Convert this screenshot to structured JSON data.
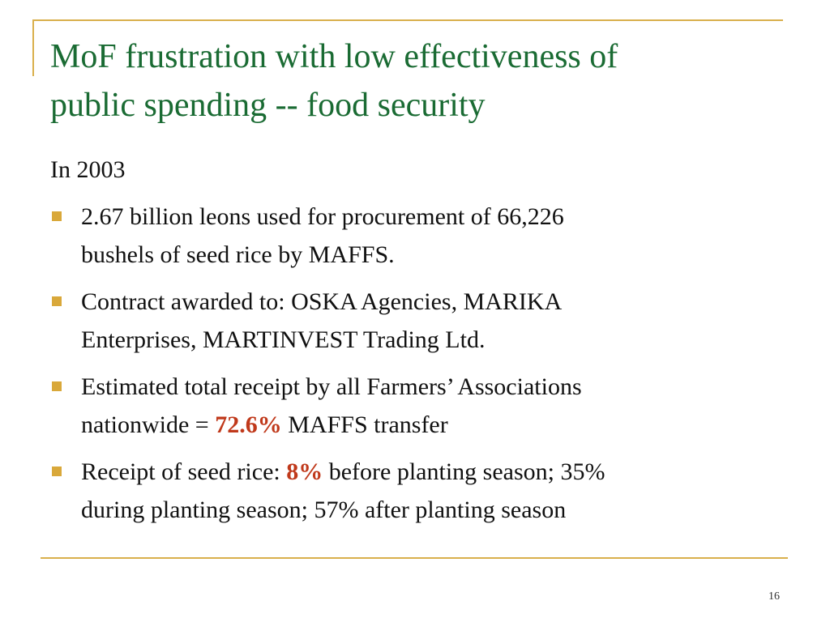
{
  "slide": {
    "title_lines": [
      "MoF frustration with low effectiveness of",
      "public spending -- food security"
    ],
    "intro": "In 2003",
    "bullets": [
      {
        "line1": "2.67 billion leons used for procurement of 66,226",
        "line2": "bushels of seed rice by MAFFS."
      },
      {
        "line1": "Contract awarded to: OSKA Agencies, MARIKA",
        "line2": "Enterprises, MARTINVEST Trading Ltd."
      },
      {
        "line1": "Estimated total receipt by all Farmers’ Associations",
        "line2_pre": "nationwide = ",
        "line2_highlight": "72.6%",
        "line2_post": " MAFFS transfer"
      },
      {
        "line1_pre": "Receipt of seed rice: ",
        "line1_highlight": "8%",
        "line1_post": " before planting season; 35%",
        "line2": "during planting season; 57% after planting season"
      }
    ],
    "page_number": "16",
    "colors": {
      "title": "#1a6b33",
      "rule": "#d9b04c",
      "bullet_marker": "#d9a83a",
      "highlight": "#c0391b"
    }
  }
}
